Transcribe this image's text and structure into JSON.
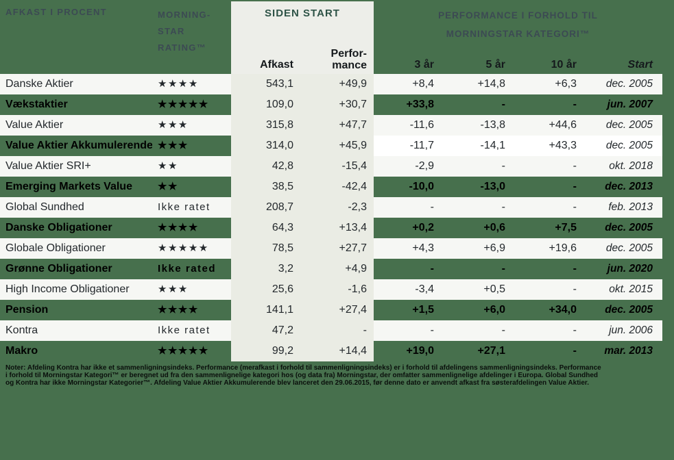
{
  "header": {
    "left_title": "AFKAST I PROCENT",
    "rating_title": "MORNING-\nSTAR\nRATING™",
    "siden_start": {
      "title": "SIDEN START",
      "afkast_label": "Afkast",
      "performance_label": "Perfor-\nmance"
    },
    "right_title": "PERFORMANCE I FORHOLD TIL\nMORNINGSTAR KATEGORI™",
    "columns": {
      "y3": "3 år",
      "y5": "5 år",
      "y10": "10 år",
      "start": "Start"
    }
  },
  "rows": [
    {
      "name": "Danske Aktier",
      "rating": "★★★★",
      "afkast": "543,1",
      "performance": "+49,9",
      "y3": "+8,4",
      "y5": "+14,8",
      "y10": "+6,3",
      "start": "dec. 2005",
      "green": false,
      "right_variant": "light"
    },
    {
      "name": "Vækstaktier",
      "rating": "★★★★★",
      "afkast": "109,0",
      "performance": "+30,7",
      "y3": "+33,8",
      "y5": "-",
      "y10": "-",
      "start": "jun. 2007",
      "green": true,
      "right_variant": "green"
    },
    {
      "name": "Value Aktier",
      "rating": "★★★",
      "afkast": "315,8",
      "performance": "+47,7",
      "y3": "-11,6",
      "y5": "-13,8",
      "y10": "+44,6",
      "start": "dec. 2005",
      "green": false,
      "right_variant": "light"
    },
    {
      "name": "Value Aktier Akkumulerende",
      "rating": "★★★",
      "afkast": "314,0",
      "performance": "+45,9",
      "y3": "-11,7",
      "y5": "-14,1",
      "y10": "+43,3",
      "start": "dec. 2005",
      "green": true,
      "right_variant": "white"
    },
    {
      "name": "Value Aktier SRI+",
      "rating": "★★",
      "afkast": "42,8",
      "performance": "-15,4",
      "y3": "-2,9",
      "y5": "-",
      "y10": "-",
      "start": "okt. 2018",
      "green": false,
      "right_variant": "light"
    },
    {
      "name": "Emerging Markets Value",
      "rating": "★★",
      "afkast": "38,5",
      "performance": "-42,4",
      "y3": "-10,0",
      "y5": "-13,0",
      "y10": "-",
      "start": "dec. 2013",
      "green": true,
      "right_variant": "green"
    },
    {
      "name": "Global Sundhed",
      "rating": "Ikke ratet",
      "afkast": "208,7",
      "performance": "-2,3",
      "y3": "-",
      "y5": "-",
      "y10": "-",
      "start": "feb. 2013",
      "green": false,
      "right_variant": "light"
    },
    {
      "name": "Danske Obligationer",
      "rating": "★★★★",
      "afkast": "64,3",
      "performance": "+13,4",
      "y3": "+0,2",
      "y5": "+0,6",
      "y10": "+7,5",
      "start": "dec. 2005",
      "green": true,
      "right_variant": "green"
    },
    {
      "name": "Globale Obligationer",
      "rating": "★★★★★",
      "afkast": "78,5",
      "performance": "+27,7",
      "y3": "+4,3",
      "y5": "+6,9",
      "y10": "+19,6",
      "start": "dec. 2005",
      "green": false,
      "right_variant": "light"
    },
    {
      "name": "Grønne Obligationer",
      "rating": "Ikke rated",
      "afkast": "3,2",
      "performance": "+4,9",
      "y3": "-",
      "y5": "-",
      "y10": "-",
      "start": "jun. 2020",
      "green": true,
      "right_variant": "green"
    },
    {
      "name": "High Income Obligationer",
      "rating": "★★★",
      "afkast": "25,6",
      "performance": "-1,6",
      "y3": "-3,4",
      "y5": "+0,5",
      "y10": "-",
      "start": "okt. 2015",
      "green": false,
      "right_variant": "light"
    },
    {
      "name": "Pension",
      "rating": "★★★★",
      "afkast": "141,1",
      "performance": "+27,4",
      "y3": "+1,5",
      "y5": "+6,0",
      "y10": "+34,0",
      "start": "dec. 2005",
      "green": true,
      "right_variant": "green"
    },
    {
      "name": "Kontra",
      "rating": "Ikke ratet",
      "afkast": "47,2",
      "performance": "-",
      "y3": "-",
      "y5": "-",
      "y10": "-",
      "start": "jun. 2006",
      "green": false,
      "right_variant": "light"
    },
    {
      "name": "Makro",
      "rating": "★★★★★",
      "afkast": "99,2",
      "performance": "+14,4",
      "y3": "+19,0",
      "y5": "+27,1",
      "y10": "-",
      "start": "mar. 2013",
      "green": true,
      "right_variant": "green"
    }
  ],
  "notes": "Noter: Afdeling Kontra har ikke et sammenligningsindeks. Performance (merafkast i forhold til sammenligningsindeks) er i forhold til afdelingens sammenligningsindeks. Performance\ni forhold til Morningstar Kategori™ er beregnet ud fra den sammenlignelige kategori hos (og data fra) Morningstar, der omfatter sammenlignelige afdelinger i Europa. Global Sundhed\nog Kontra har ikke Morningstar Kategorier™. Afdeling Value Aktier Akkumulerende blev lanceret den 29.06.2015, før denne dato er anvendt afkast fra søsterafdelingen Value Aktier.",
  "colors": {
    "background_green": "#47704d",
    "row_light": "#f6f7f4",
    "band_gray": "#eaece4",
    "header_box": "#edeee9",
    "anomaly_white": "#ffffff",
    "header_text": "#3c4a53",
    "siden_start_text": "#2e5347",
    "body_text": "#23282c"
  }
}
